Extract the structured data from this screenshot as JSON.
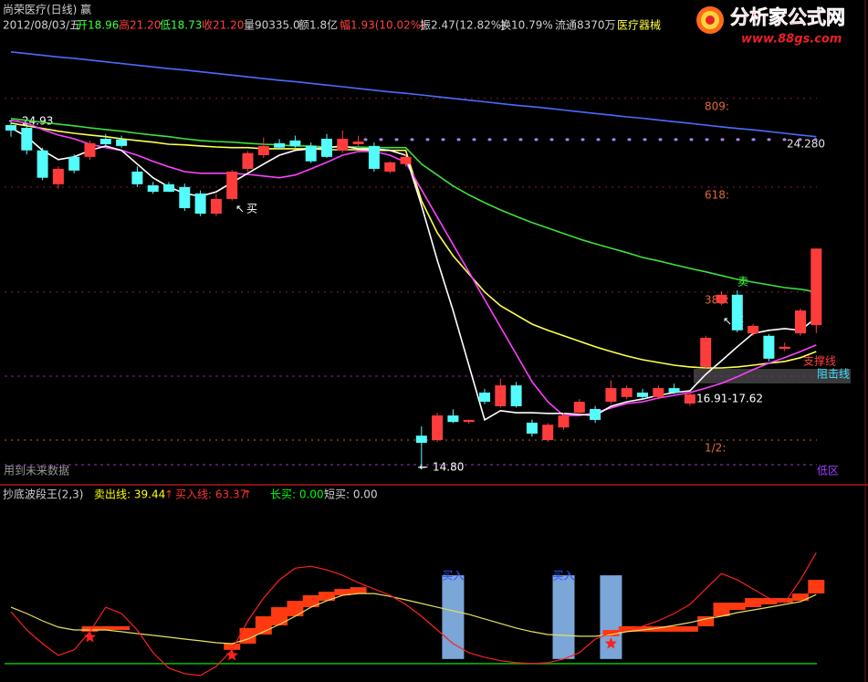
{
  "header": {
    "title": "尚荣医疗(日线) 赢",
    "date": "2012/08/03/五",
    "open": "开18.96",
    "high": "高21.20",
    "low": "低18.73",
    "close": "收21.20",
    "volume": "量90335.0",
    "amount": "额1.8亿",
    "change": "幅1.93(10.02%)",
    "amplitude": "振2.47(12.82%)",
    "turnover": "换10.79%",
    "float": "流通8370万",
    "sector": "医疗器械"
  },
  "logo": {
    "name": "分析家公式网",
    "url": "www.88gs.com"
  },
  "chart_data": [
    {
      "type": "candlestick",
      "ylim": [
        14.32,
        28.2
      ],
      "up_color": "#ff3c3c",
      "down_color": "#54fcfc",
      "candles": [
        [
          24.81,
          24.93,
          24.47,
          24.65
        ],
        [
          24.73,
          24.85,
          23.95,
          24.07
        ],
        [
          24.07,
          24.15,
          23.2,
          23.27
        ],
        [
          23.08,
          23.6,
          22.95,
          23.53
        ],
        [
          23.88,
          23.95,
          23.4,
          23.48
        ],
        [
          23.88,
          24.35,
          23.8,
          24.28
        ],
        [
          24.41,
          24.55,
          24.2,
          24.25
        ],
        [
          24.39,
          24.5,
          24.15,
          24.2
        ],
        [
          23.45,
          23.6,
          23.0,
          23.08
        ],
        [
          23.05,
          23.15,
          22.8,
          22.86
        ],
        [
          23.08,
          23.15,
          22.85,
          22.86
        ],
        [
          23.0,
          23.1,
          22.3,
          22.38
        ],
        [
          22.81,
          22.9,
          22.15,
          22.22
        ],
        [
          22.22,
          22.8,
          22.15,
          22.65
        ],
        [
          22.65,
          23.5,
          22.6,
          23.45
        ],
        [
          23.53,
          24.05,
          23.45,
          23.99
        ],
        [
          23.93,
          24.45,
          23.85,
          24.2
        ],
        [
          24.28,
          24.4,
          24.1,
          24.15
        ],
        [
          24.36,
          24.5,
          24.15,
          24.2
        ],
        [
          24.2,
          24.3,
          23.7,
          23.75
        ],
        [
          24.41,
          24.55,
          23.85,
          23.88
        ],
        [
          24.07,
          24.65,
          24.0,
          24.41
        ],
        [
          24.25,
          24.5,
          24.2,
          24.33
        ],
        [
          24.2,
          24.3,
          23.45,
          23.53
        ],
        [
          23.45,
          23.75,
          23.4,
          23.72
        ],
        [
          23.67,
          23.95,
          23.6,
          23.88
        ],
        [
          15.73,
          16.0,
          14.8,
          15.52
        ],
        [
          15.6,
          16.4,
          15.55,
          16.32
        ],
        [
          16.32,
          16.5,
          16.1,
          16.13
        ],
        [
          16.13,
          16.2,
          16.08,
          16.19
        ],
        [
          16.99,
          17.1,
          16.65,
          16.72
        ],
        [
          16.59,
          17.4,
          16.55,
          17.2
        ],
        [
          17.2,
          17.3,
          16.55,
          16.59
        ],
        [
          16.11,
          16.2,
          15.7,
          15.79
        ],
        [
          15.6,
          16.1,
          15.55,
          16.05
        ],
        [
          15.97,
          16.4,
          15.9,
          16.32
        ],
        [
          16.4,
          16.8,
          16.35,
          16.72
        ],
        [
          16.51,
          16.6,
          16.1,
          16.19
        ],
        [
          16.72,
          17.35,
          16.65,
          17.12
        ],
        [
          16.86,
          17.2,
          16.8,
          17.12
        ],
        [
          16.99,
          17.1,
          16.8,
          16.86
        ],
        [
          16.86,
          17.2,
          16.8,
          17.12
        ],
        [
          17.12,
          17.25,
          16.95,
          16.99
        ],
        [
          16.67,
          17.0,
          16.6,
          16.94
        ],
        [
          17.74,
          18.65,
          17.7,
          18.59
        ],
        [
          19.61,
          19.95,
          19.55,
          19.85
        ],
        [
          19.85,
          19.98,
          18.75,
          18.81
        ],
        [
          18.72,
          19.0,
          18.65,
          18.94
        ],
        [
          18.65,
          18.7,
          17.9,
          17.98
        ],
        [
          18.27,
          18.45,
          18.2,
          18.33
        ],
        [
          18.72,
          19.45,
          18.65,
          19.39
        ],
        [
          18.96,
          21.2,
          18.73,
          21.2
        ]
      ],
      "lines": [
        {
          "color": "#4a6cff",
          "values": [
            26.95,
            26.9,
            26.85,
            26.8,
            26.76,
            26.71,
            26.66,
            26.61,
            26.56,
            26.51,
            26.46,
            26.42,
            26.37,
            26.32,
            26.27,
            26.22,
            26.17,
            26.12,
            26.08,
            26.03,
            25.98,
            25.93,
            25.88,
            25.83,
            25.78,
            25.74,
            25.69,
            25.64,
            25.59,
            25.54,
            25.49,
            25.44,
            25.39,
            25.35,
            25.3,
            25.25,
            25.2,
            25.15,
            25.1,
            25.05,
            25.01,
            24.96,
            24.91,
            24.86,
            24.81,
            24.76,
            24.71,
            24.67,
            24.62,
            24.57,
            24.52,
            24.47
          ]
        },
        {
          "color": "#3ee03e",
          "values": [
            25.0,
            24.95,
            24.89,
            24.84,
            24.79,
            24.73,
            24.68,
            24.63,
            24.57,
            24.52,
            24.47,
            24.41,
            24.36,
            24.33,
            24.31,
            24.28,
            24.25,
            24.23,
            24.2,
            24.2,
            24.17,
            24.17,
            24.17,
            24.15,
            24.15,
            24.15,
            23.67,
            23.35,
            23.03,
            22.77,
            22.54,
            22.33,
            22.14,
            21.96,
            21.8,
            21.64,
            21.48,
            21.34,
            21.21,
            21.08,
            20.94,
            20.84,
            20.73,
            20.62,
            20.52,
            20.41,
            20.3,
            20.22,
            20.14,
            20.06,
            20.01,
            19.93
          ]
        },
        {
          "color": "#ffff50",
          "values": [
            24.87,
            24.79,
            24.71,
            24.63,
            24.57,
            24.52,
            24.47,
            24.41,
            24.36,
            24.31,
            24.25,
            24.23,
            24.2,
            24.17,
            24.15,
            24.15,
            24.12,
            24.12,
            24.12,
            24.12,
            24.09,
            24.09,
            24.09,
            24.07,
            24.07,
            24.07,
            22.6,
            21.66,
            20.99,
            20.46,
            19.93,
            19.53,
            19.26,
            18.99,
            18.81,
            18.65,
            18.49,
            18.33,
            18.19,
            18.06,
            17.95,
            17.87,
            17.79,
            17.74,
            17.71,
            17.71,
            17.74,
            17.79,
            17.85,
            17.9,
            18.01,
            18.19
          ]
        },
        {
          "color": "#ff40ff",
          "values": [
            24.95,
            24.87,
            24.68,
            24.52,
            24.41,
            24.25,
            24.15,
            24.07,
            23.93,
            23.75,
            23.59,
            23.45,
            23.4,
            23.4,
            23.4,
            23.37,
            23.32,
            23.27,
            23.35,
            23.53,
            23.72,
            23.93,
            24.04,
            24.04,
            23.93,
            23.72,
            22.92,
            22.12,
            21.32,
            20.52,
            19.71,
            18.91,
            18.11,
            17.31,
            16.72,
            16.32,
            16.32,
            16.4,
            16.54,
            16.67,
            16.72,
            16.83,
            16.91,
            16.99,
            17.12,
            17.26,
            17.45,
            17.66,
            17.85,
            18.01,
            18.19,
            18.38
          ]
        },
        {
          "color": "#ffffff",
          "values": [
            24.73,
            24.47,
            24.07,
            23.8,
            23.88,
            24.07,
            24.2,
            24.07,
            23.67,
            23.27,
            23.0,
            22.81,
            22.73,
            22.86,
            23.13,
            23.4,
            23.67,
            23.93,
            24.07,
            24.12,
            24.15,
            24.2,
            24.12,
            24.12,
            24.07,
            23.93,
            22.46,
            20.86,
            19.39,
            17.79,
            16.19,
            16.46,
            16.4,
            16.4,
            16.38,
            16.38,
            16.35,
            16.32,
            16.59,
            16.72,
            16.8,
            16.91,
            16.99,
            17.04,
            17.52,
            17.92,
            18.33,
            18.72,
            18.81,
            18.86,
            18.81,
            19.18
          ]
        }
      ],
      "levels": [
        {
          "value": 25.59,
          "label": "809:"
        },
        {
          "value": 23.0,
          "label": "618:"
        },
        {
          "value": 19.93,
          "label": "382:"
        },
        {
          "value": 15.6,
          "label": "1/2:"
        }
      ],
      "extra_levels": [
        17.47,
        14.88
      ],
      "price_level": {
        "value": 24.28,
        "label": "24.280"
      },
      "high_mark": {
        "value": 24.93,
        "label": "24.93"
      },
      "low_mark": {
        "value": 14.8,
        "label": "14.80"
      },
      "annotations": {
        "buy1": "买",
        "sell": "卖",
        "buy2": "买",
        "range": "16.91-17.62",
        "support": "支撑线",
        "resist": "阻击线",
        "future": "用到未来数据",
        "low_zone": "低区"
      }
    },
    {
      "type": "indicator",
      "title": "抄底波段王(2,3)",
      "ylim": [
        -10,
        100
      ],
      "legend": {
        "sell": "卖出线: 39.44",
        "buy": "买入线: 63.37",
        "arrow": "↑",
        "long": "长买: 0.00",
        "short": "短买: 0.00"
      },
      "baseline": 0,
      "series": [
        {
          "color": "#e8e060",
          "values": [
            32.2,
            28.6,
            24.4,
            20.8,
            19.2,
            19.2,
            19.2,
            18.2,
            17.1,
            16.1,
            15.1,
            14.0,
            13.0,
            11.9,
            11.4,
            14.0,
            18.2,
            22.3,
            27.0,
            32.2,
            35.8,
            39.0,
            40.0,
            40.0,
            38.4,
            36.4,
            34.3,
            32.2,
            30.1,
            28.1,
            25.5,
            22.9,
            20.3,
            18.2,
            16.6,
            16.1,
            15.6,
            15.6,
            16.6,
            18.2,
            19.2,
            20.3,
            21.8,
            23.4,
            25.5,
            27.0,
            29.1,
            30.6,
            32.2,
            33.8,
            35.3,
            39.44
          ]
        },
        {
          "color": "#ff2020",
          "values": [
            29.6,
            19.2,
            11.4,
            4.7,
            7.8,
            18.2,
            32.2,
            28.6,
            19.2,
            6.2,
            -2.6,
            -5.7,
            -6.8,
            -1.6,
            7.8,
            24.4,
            37.4,
            47.8,
            54.5,
            55.6,
            53.5,
            50.4,
            46.2,
            42.6,
            39.0,
            33.8,
            27.0,
            19.2,
            11.4,
            6.2,
            3.6,
            1.6,
            0.5,
            0.0,
            0.5,
            2.6,
            6.2,
            14.0,
            17.7,
            19.2,
            21.3,
            24.4,
            28.6,
            33.8,
            42.6,
            51.4,
            47.8,
            42.6,
            37.4,
            34.8,
            47.8,
            63.37
          ]
        }
      ],
      "blocks": {
        "color": "#ff3a10",
        "upper": [
          null,
          null,
          null,
          null,
          null,
          21.3,
          21.3,
          21.3,
          null,
          null,
          null,
          null,
          null,
          null,
          11.4,
          20.3,
          27.0,
          32.2,
          35.8,
          39.0,
          41.0,
          42.6,
          43.6,
          null,
          null,
          null,
          null,
          null,
          null,
          null,
          null,
          null,
          null,
          null,
          null,
          null,
          null,
          null,
          19.2,
          21.3,
          21.3,
          21.3,
          21.3,
          21.3,
          27.0,
          34.8,
          34.8,
          37.4,
          37.4,
          37.4,
          40.0,
          47.8
        ],
        "lower": [
          null,
          null,
          null,
          null,
          null,
          18.2,
          19.2,
          19.2,
          null,
          null,
          null,
          null,
          null,
          null,
          7.8,
          11.4,
          16.6,
          21.8,
          27.0,
          32.2,
          35.8,
          39.0,
          40.0,
          null,
          null,
          null,
          null,
          null,
          null,
          null,
          null,
          null,
          null,
          null,
          null,
          null,
          null,
          null,
          15.6,
          18.2,
          18.2,
          18.2,
          18.2,
          18.2,
          21.3,
          27.0,
          30.6,
          32.2,
          33.8,
          34.8,
          35.8,
          40.0
        ]
      },
      "signals": {
        "color": "#7aa6d8",
        "base": 2.6,
        "values": [
          null,
          null,
          null,
          null,
          null,
          null,
          null,
          null,
          null,
          null,
          null,
          null,
          null,
          null,
          null,
          null,
          null,
          null,
          null,
          null,
          null,
          null,
          null,
          null,
          null,
          null,
          null,
          null,
          50.4,
          null,
          null,
          null,
          null,
          null,
          null,
          50.4,
          null,
          null,
          50.4,
          null,
          null,
          null,
          null,
          null,
          null,
          null,
          null,
          null,
          null,
          null,
          null,
          null
        ],
        "labels": [
          null,
          null,
          null,
          null,
          null,
          null,
          null,
          null,
          null,
          null,
          null,
          null,
          null,
          null,
          null,
          null,
          null,
          null,
          null,
          null,
          null,
          null,
          null,
          null,
          null,
          null,
          null,
          null,
          "买入",
          null,
          null,
          null,
          null,
          null,
          null,
          "买入",
          null,
          null,
          null,
          null,
          null,
          null,
          null,
          null,
          null,
          null,
          null,
          null,
          null,
          null,
          null,
          null
        ]
      },
      "stars": {
        "color": "#ff2020",
        "values": [
          null,
          null,
          null,
          null,
          null,
          15.1,
          null,
          null,
          null,
          null,
          null,
          null,
          null,
          null,
          4.7,
          null,
          null,
          null,
          null,
          null,
          null,
          null,
          null,
          null,
          null,
          null,
          null,
          null,
          null,
          null,
          null,
          null,
          null,
          null,
          null,
          null,
          null,
          null,
          11.4,
          null,
          null,
          null,
          null,
          null,
          null,
          null,
          null,
          null,
          null,
          null,
          null,
          null
        ]
      }
    }
  ]
}
